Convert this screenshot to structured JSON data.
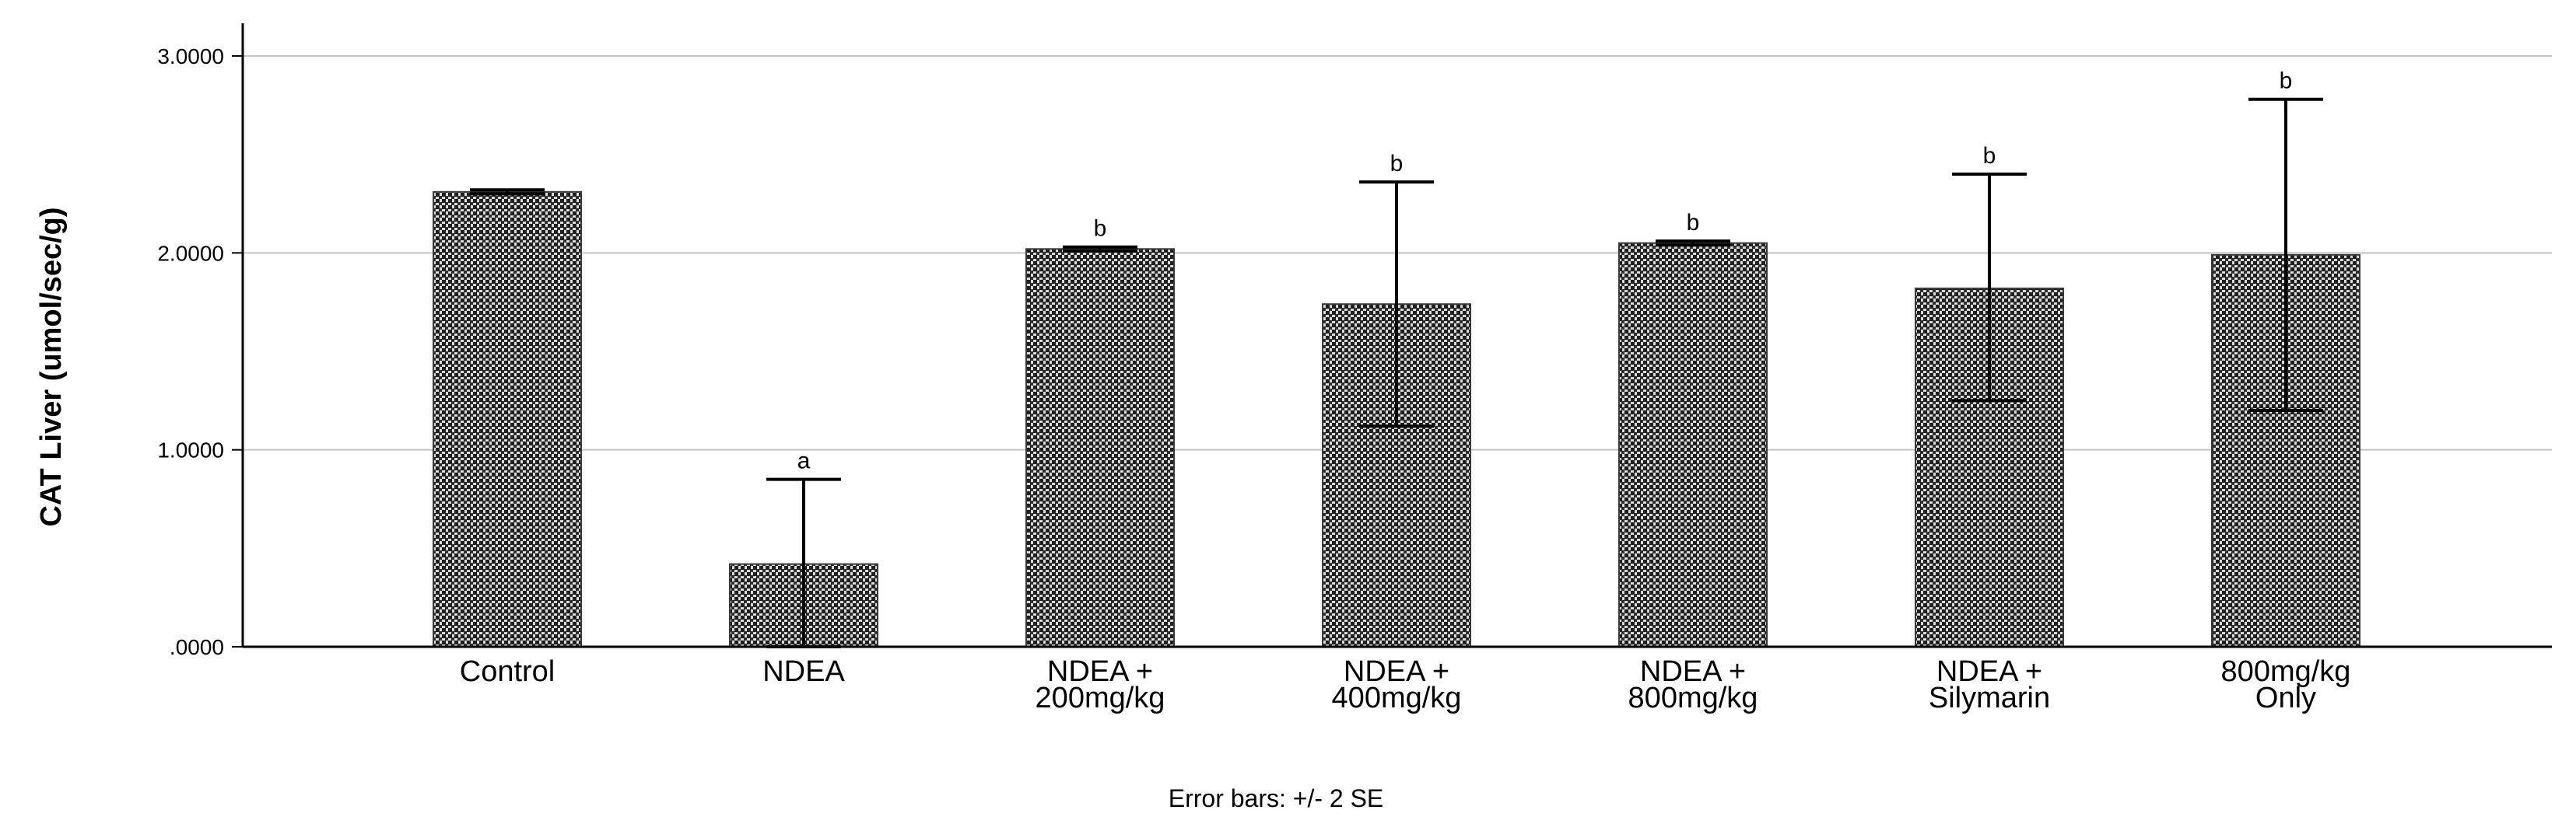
{
  "chart_data": {
    "type": "bar",
    "ylabel": "CAT Liver (umol/sec/g)",
    "xlabel": "",
    "ylim": [
      0,
      3.0
    ],
    "yticks": [
      {
        "value": 0,
        "label": ".0000"
      },
      {
        "value": 1,
        "label": "1.0000"
      },
      {
        "value": 2,
        "label": "2.0000"
      },
      {
        "value": 3,
        "label": "3.0000"
      }
    ],
    "grid": true,
    "categories": [
      [
        "Control"
      ],
      [
        "NDEA"
      ],
      [
        "NDEA +",
        "200mg/kg"
      ],
      [
        "NDEA +",
        "400mg/kg"
      ],
      [
        "NDEA +",
        "800mg/kg"
      ],
      [
        "NDEA +",
        "Silymarin"
      ],
      [
        "800mg/kg",
        "Only"
      ]
    ],
    "values": [
      2.31,
      0.42,
      2.02,
      1.74,
      2.05,
      1.82,
      1.99
    ],
    "error_bars": [
      {
        "low": 2.3,
        "high": 2.32
      },
      {
        "low": 0.0,
        "high": 0.85
      },
      {
        "low": 2.01,
        "high": 2.03
      },
      {
        "low": 1.12,
        "high": 2.36
      },
      {
        "low": 2.04,
        "high": 2.06
      },
      {
        "low": 1.25,
        "high": 2.4
      },
      {
        "low": 1.2,
        "high": 2.78
      }
    ],
    "significance": [
      "",
      "a",
      "b",
      "b",
      "b",
      "b",
      "b"
    ],
    "footnote": "Error bars:  +/- 2 SE",
    "bar_color": "#3a3a3a"
  }
}
